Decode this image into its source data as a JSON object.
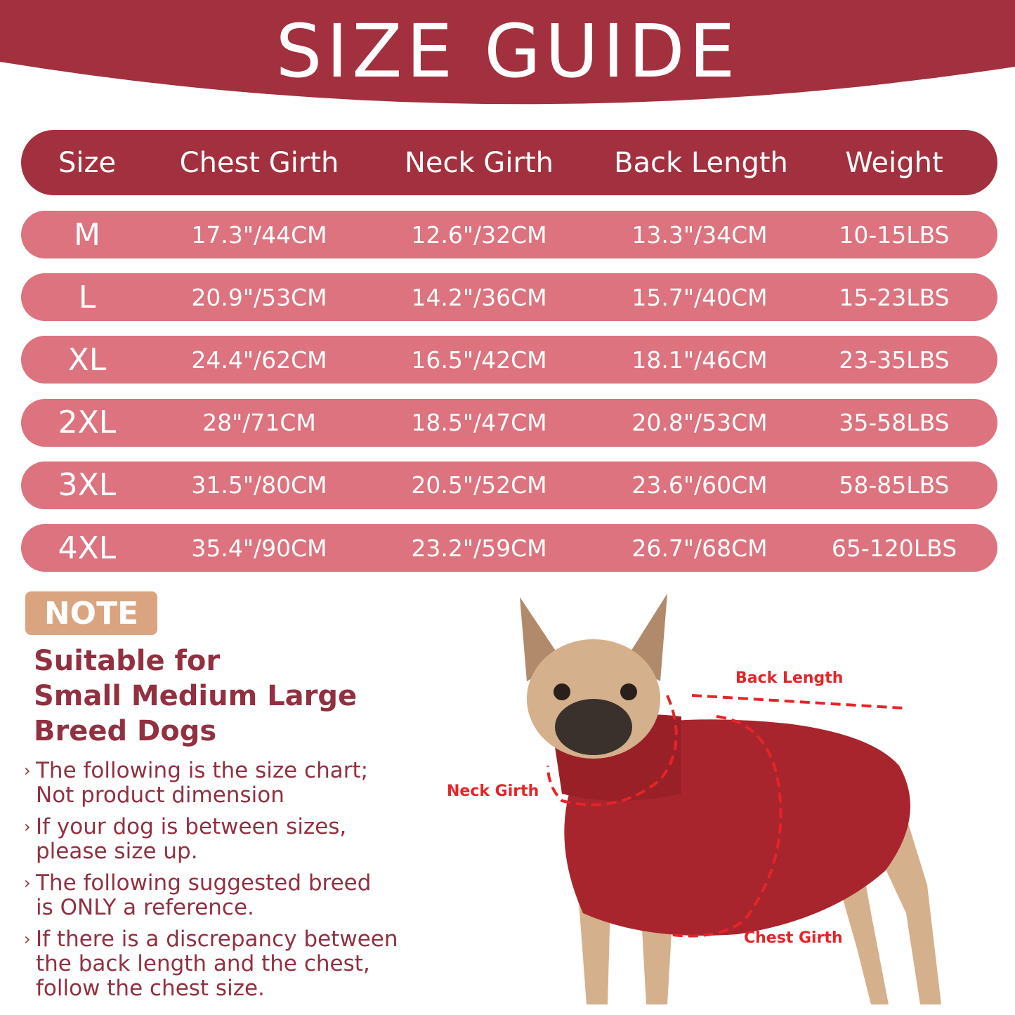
{
  "title": "SIZE GUIDE",
  "colors": {
    "banner": "#a3303f",
    "row": "#dc737e",
    "note": "#d9a47f",
    "text": "#923040",
    "measure": "#e52428"
  },
  "table": {
    "headers": [
      "Size",
      "Chest Girth",
      "Neck Girth",
      "Back Length",
      "Weight"
    ],
    "rows": [
      [
        "M",
        "17.3\"/44CM",
        "12.6\"/32CM",
        "13.3\"/34CM",
        "10-15LBS"
      ],
      [
        "L",
        "20.9\"/53CM",
        "14.2\"/36CM",
        "15.7\"/40CM",
        "15-23LBS"
      ],
      [
        "XL",
        "24.4\"/62CM",
        "16.5\"/42CM",
        "18.1\"/46CM",
        "23-35LBS"
      ],
      [
        "2XL",
        "28\"/71CM",
        "18.5\"/47CM",
        "20.8\"/53CM",
        "35-58LBS"
      ],
      [
        "3XL",
        "31.5\"/80CM",
        "20.5\"/52CM",
        "23.6\"/60CM",
        "58-85LBS"
      ],
      [
        "4XL",
        "35.4\"/90CM",
        "23.2\"/59CM",
        "26.7\"/68CM",
        "65-120LBS"
      ]
    ]
  },
  "note": {
    "badge": "NOTE",
    "headline": [
      "Suitable for",
      "Small Medium Large",
      "Breed Dogs"
    ],
    "tips": [
      "The following is the size chart;\nNot product dimension",
      "If your dog is between sizes,\nplease size up.",
      "The following suggested breed\nis ONLY a reference.",
      "If there is a discrepancy between\nthe back length and the chest,\nfollow the chest size."
    ]
  },
  "diagram": {
    "back_length": "Back Length",
    "neck_girth": "Neck Girth",
    "chest_girth": "Chest Girth"
  }
}
